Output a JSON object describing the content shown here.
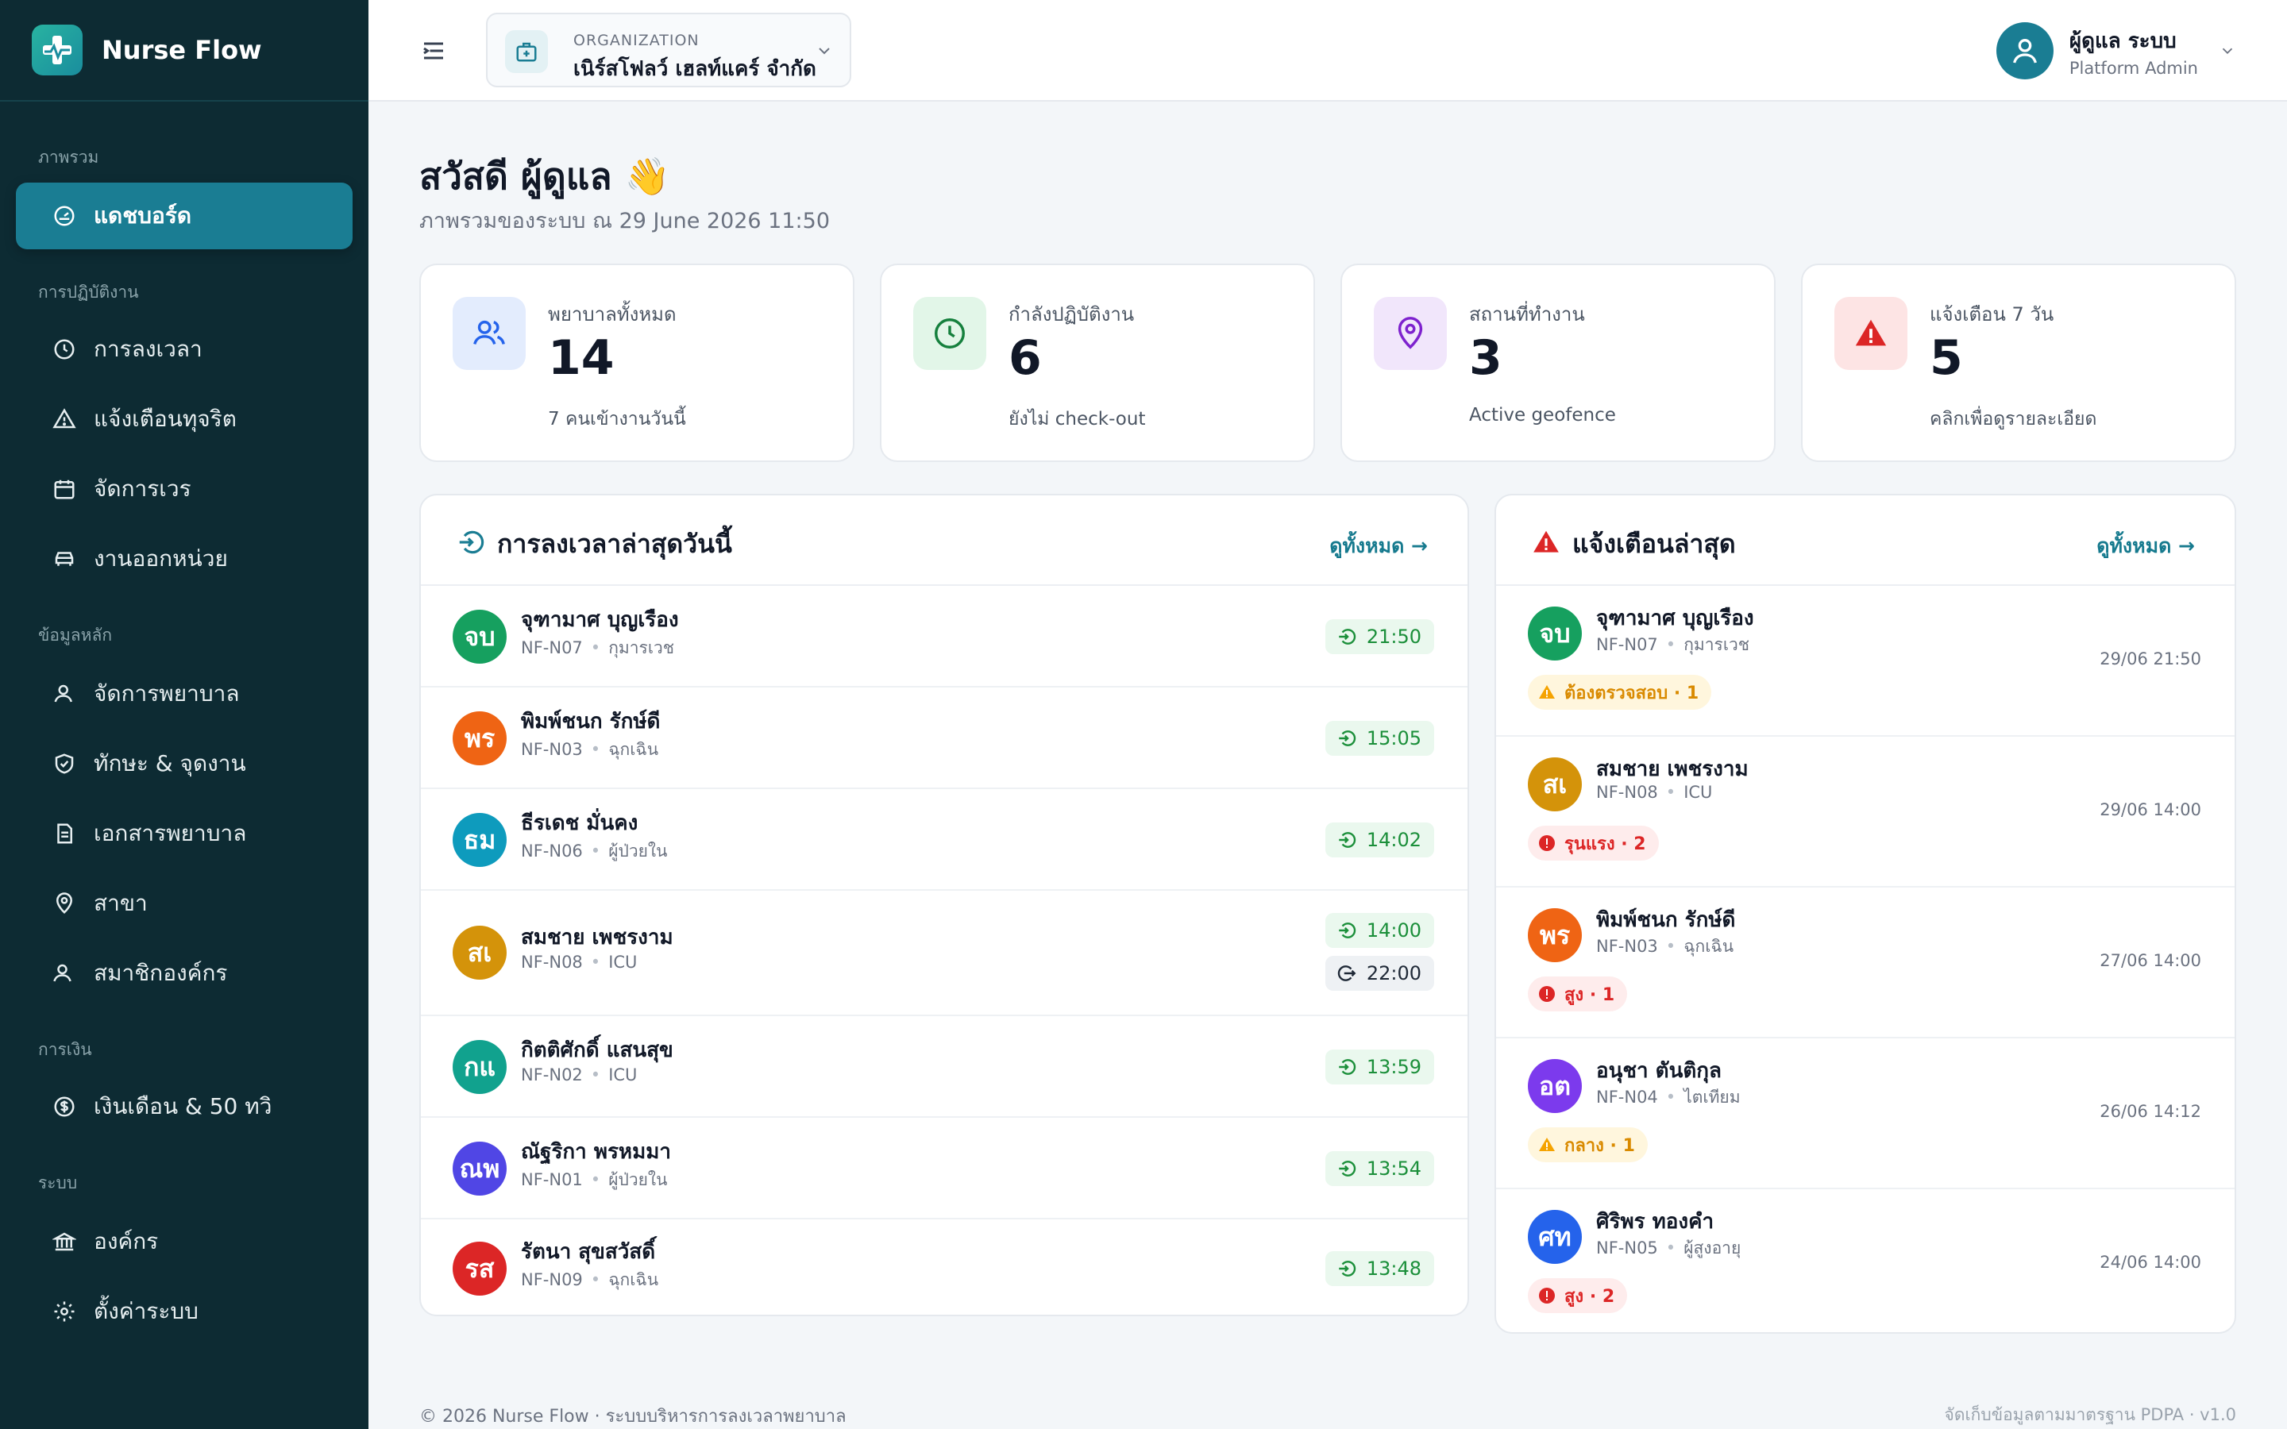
{
  "brand": {
    "name": "Nurse Flow"
  },
  "sidebar": {
    "sections": [
      {
        "title": "ภาพรวม"
      },
      {
        "title": "การปฏิบัติงาน"
      },
      {
        "title": "ข้อมูลหลัก"
      },
      {
        "title": "การเงิน"
      },
      {
        "title": "ระบบ"
      }
    ],
    "items": [
      {
        "label": "แดชบอร์ด",
        "icon": "gauge-icon",
        "active": true
      },
      {
        "label": "การลงเวลา",
        "icon": "clock-icon"
      },
      {
        "label": "แจ้งเตือนทุจริต",
        "icon": "alert-triangle-icon"
      },
      {
        "label": "จัดการเวร",
        "icon": "calendar-icon"
      },
      {
        "label": "งานออกหน่วย",
        "icon": "car-icon"
      },
      {
        "label": "จัดการพยาบาล",
        "icon": "user-nurse-icon"
      },
      {
        "label": "ทักษะ & จุดงาน",
        "icon": "shield-check-icon"
      },
      {
        "label": "เอกสารพยาบาล",
        "icon": "document-icon"
      },
      {
        "label": "สาขา",
        "icon": "map-pin-icon"
      },
      {
        "label": "สมาชิกองค์กร",
        "icon": "users-icon"
      },
      {
        "label": "เงินเดือน & 50 ทวิ",
        "icon": "dollar-icon"
      },
      {
        "label": "องค์กร",
        "icon": "bank-icon"
      },
      {
        "label": "ตั้งค่าระบบ",
        "icon": "gear-icon"
      }
    ]
  },
  "header": {
    "org_label": "ORGANIZATION",
    "org_name": "เนิร์สโฟลว์ เฮลท์แคร์ จำกัด",
    "user_name": "ผู้ดูแล ระบบ",
    "user_role": "Platform Admin"
  },
  "greeting": {
    "title": "สวัสดี ผู้ดูแล 👋",
    "subtitle": "ภาพรวมของระบบ ณ 29 June 2026 11:50"
  },
  "stats": [
    {
      "label": "พยาบาลทั้งหมด",
      "value": "14",
      "sub": "7 คนเข้างานวันนี้",
      "icon": "nurses-icon",
      "color": "#2563eb",
      "bg": "#e3ecfd"
    },
    {
      "label": "กำลังปฏิบัติงาน",
      "value": "6",
      "sub": "ยังไม่ check-out",
      "icon": "clock-icon",
      "color": "#15803d",
      "bg": "#e2f6e8"
    },
    {
      "label": "สถานที่ทำงาน",
      "value": "3",
      "sub": "Active geofence",
      "icon": "map-pin-icon",
      "color": "#7e22ce",
      "bg": "#f1e6fb"
    },
    {
      "label": "แจ้งเตือน 7 วัน",
      "value": "5",
      "sub": "คลิกเพื่อดูรายละเอียด",
      "icon": "warning-icon",
      "color": "#dc2626",
      "bg": "#fde4e4"
    }
  ],
  "timelog": {
    "title": "การลงเวลาล่าสุดวันนี้",
    "link": "ดูทั้งหมด →",
    "rows": [
      {
        "initials": "จบ",
        "color": "#16a05f",
        "name": "จุฑามาศ บุญเรือง",
        "code": "NF-N07",
        "unit": "กุมารเวช",
        "in": "21:50"
      },
      {
        "initials": "พร",
        "color": "#ef6414",
        "name": "พิมพ์ชนก รักษ์ดี",
        "code": "NF-N03",
        "unit": "ฉุกเฉิน",
        "in": "15:05"
      },
      {
        "initials": "ธม",
        "color": "#0e9bbd",
        "name": "ธีรเดช มั่นคง",
        "code": "NF-N06",
        "unit": "ผู้ป่วยใน",
        "in": "14:02"
      },
      {
        "initials": "สเ",
        "color": "#d4930a",
        "name": "สมชาย เพชรงาม",
        "code": "NF-N08",
        "unit": "ICU",
        "in": "14:00",
        "out": "22:00"
      },
      {
        "initials": "กแ",
        "color": "#11a28e",
        "name": "กิตติศักดิ์ แสนสุข",
        "code": "NF-N02",
        "unit": "ICU",
        "in": "13:59"
      },
      {
        "initials": "ณพ",
        "color": "#5046e5",
        "name": "ณัฐริกา พรหมมา",
        "code": "NF-N01",
        "unit": "ผู้ป่วยใน",
        "in": "13:54"
      },
      {
        "initials": "รส",
        "color": "#dc2626",
        "name": "รัตนา สุขสวัสดิ์",
        "code": "NF-N09",
        "unit": "ฉุกเฉิน",
        "in": "13:48"
      }
    ]
  },
  "alerts": {
    "title": "แจ้งเตือนล่าสุด",
    "link": "ดูทั้งหมด →",
    "rows": [
      {
        "initials": "จบ",
        "color": "#16a05f",
        "name": "จุฑามาศ บุญเรือง",
        "code": "NF-N07",
        "unit": "กุมารเวช",
        "badge": "ต้องตรวจสอบ · 1",
        "level": "warn",
        "date": "29/06 21:50"
      },
      {
        "initials": "สเ",
        "color": "#d4930a",
        "name": "สมชาย เพชรงาม",
        "code": "NF-N08",
        "unit": "ICU",
        "badge": "รุนแรง · 2",
        "level": "err",
        "date": "29/06 14:00"
      },
      {
        "initials": "พร",
        "color": "#ef6414",
        "name": "พิมพ์ชนก รักษ์ดี",
        "code": "NF-N03",
        "unit": "ฉุกเฉิน",
        "badge": "สูง · 1",
        "level": "err",
        "date": "27/06 14:00"
      },
      {
        "initials": "อต",
        "color": "#7c3aed",
        "name": "อนุชา ตันติกุล",
        "code": "NF-N04",
        "unit": "ไตเทียม",
        "badge": "กลาง · 1",
        "level": "warn",
        "date": "26/06 14:12"
      },
      {
        "initials": "ศท",
        "color": "#2563eb",
        "name": "ศิริพร ทองคำ",
        "code": "NF-N05",
        "unit": "ผู้สูงอายุ",
        "badge": "สูง · 2",
        "level": "err",
        "date": "24/06 14:00"
      }
    ]
  },
  "footer": {
    "left": "© 2026 Nurse Flow · ระบบบริหารการลงเวลาพยาบาล",
    "right": "จัดเก็บข้อมูลตามมาตรฐาน PDPA · v1.0"
  }
}
